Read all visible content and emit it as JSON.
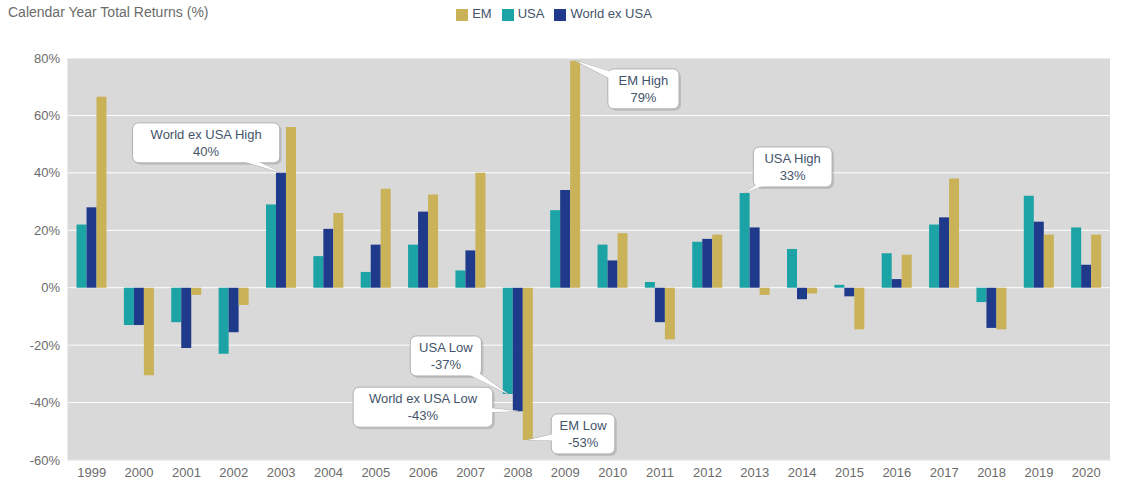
{
  "chart_data": {
    "type": "bar",
    "title": "Calendar Year Total Returns (%)",
    "categories": [
      "1999",
      "2000",
      "2001",
      "2002",
      "2003",
      "2004",
      "2005",
      "2006",
      "2007",
      "2008",
      "2009",
      "2010",
      "2011",
      "2012",
      "2013",
      "2014",
      "2015",
      "2016",
      "2017",
      "2018",
      "2019",
      "2020"
    ],
    "series": [
      {
        "name": "USA",
        "color": "#1ba3a6",
        "values": [
          22,
          -13,
          -12,
          -23,
          29,
          11,
          5.5,
          15,
          6,
          -37,
          27,
          15,
          2,
          16,
          33,
          13.5,
          1,
          12,
          22,
          -5,
          32,
          21
        ]
      },
      {
        "name": "World ex USA",
        "color": "#1f3a8a",
        "values": [
          28,
          -13,
          -21,
          -15.5,
          40,
          20.5,
          15,
          26.5,
          13,
          -43,
          34,
          9.5,
          -12,
          17,
          21,
          -4,
          -3,
          3,
          24.5,
          -14,
          23,
          8
        ]
      },
      {
        "name": "EM",
        "color": "#c9b257",
        "values": [
          66.5,
          -30.5,
          -2.5,
          -6,
          56,
          26,
          34.5,
          32.5,
          40,
          -53,
          79,
          19,
          -18,
          18.5,
          -2.5,
          -2,
          -14.5,
          11.5,
          38,
          -14.5,
          18.5,
          18.5
        ]
      }
    ],
    "ylim": [
      -60,
      80
    ],
    "yticks": [
      {
        "value": -60,
        "label": "-60%"
      },
      {
        "value": -40,
        "label": "-40%"
      },
      {
        "value": -20,
        "label": "-20%"
      },
      {
        "value": 0,
        "label": "0%"
      },
      {
        "value": 20,
        "label": "20%"
      },
      {
        "value": 40,
        "label": "40%"
      },
      {
        "value": 60,
        "label": "60%"
      },
      {
        "value": 80,
        "label": "80%"
      }
    ],
    "grid": true,
    "legend": "top",
    "annotations": [
      {
        "text": "World ex USA High",
        "label": "40%",
        "value": 40,
        "x": "2003",
        "series": "World ex USA"
      },
      {
        "text": "EM High",
        "label": "79%",
        "value": 79,
        "x": "2009",
        "series": "EM"
      },
      {
        "text": "USA High",
        "label": "33%",
        "value": 33,
        "x": "2013",
        "series": "USA"
      },
      {
        "text": "USA Low",
        "label": "-37%",
        "value": -37,
        "x": "2008",
        "series": "USA"
      },
      {
        "text": "World ex USA Low",
        "label": "-43%",
        "value": -43,
        "x": "2008",
        "series": "World ex USA"
      },
      {
        "text": "EM Low",
        "label": "-53%",
        "value": -53,
        "x": "2008",
        "series": "EM"
      }
    ]
  }
}
